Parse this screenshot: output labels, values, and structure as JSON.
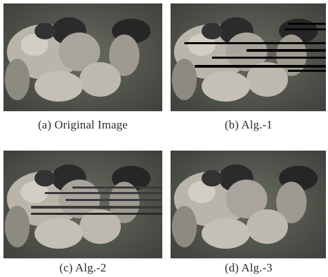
{
  "figure": {
    "panels": [
      {
        "id": "a",
        "caption": "(a)  Original  Image",
        "artifact": "none"
      },
      {
        "id": "b",
        "caption": "(b)  Alg.-1",
        "artifact": "black horizontal streaks"
      },
      {
        "id": "c",
        "caption": "(c)  Alg.-2",
        "artifact": "grey horizontal streaks"
      },
      {
        "id": "d",
        "caption": "(d)  Alg.-3",
        "artifact": "none"
      }
    ],
    "colors": {
      "field": "#55584f",
      "players_light": "#c9c6bd",
      "players_dark": "#1f1f1f",
      "streak_black": "#050505",
      "streak_grey": "#3a3a3a"
    }
  }
}
